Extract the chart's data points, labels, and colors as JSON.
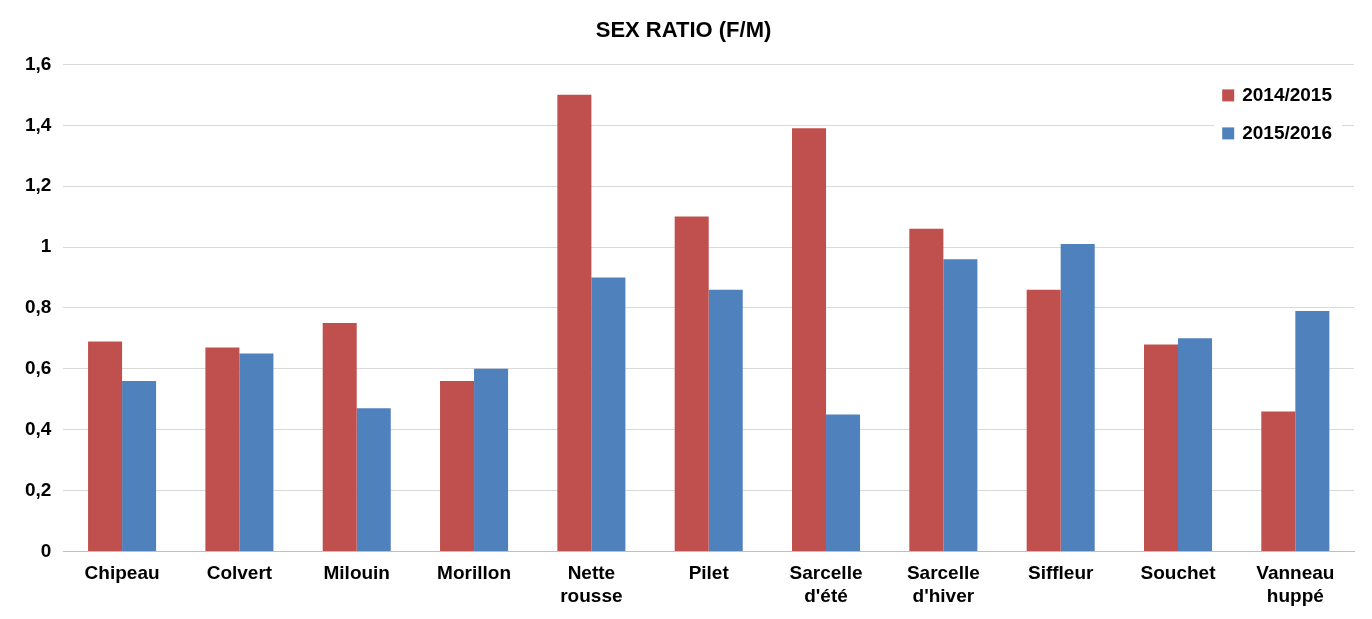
{
  "chart_data": {
    "type": "bar",
    "title": "SEX RATIO (F/M)",
    "categories": [
      "Chipeau",
      "Colvert",
      "Milouin",
      "Morillon",
      "Nette rousse",
      "Pilet",
      "Sarcelle d'été",
      "Sarcelle d'hiver",
      "Siffleur",
      "Souchet",
      "Vanneau huppé"
    ],
    "series": [
      {
        "name": "2014/2015",
        "color": "#c0504d",
        "values": [
          0.69,
          0.67,
          0.75,
          0.56,
          1.5,
          1.1,
          1.39,
          1.06,
          0.86,
          0.68,
          0.46
        ]
      },
      {
        "name": "2015/2016",
        "color": "#4f81bd",
        "values": [
          0.56,
          0.65,
          0.47,
          0.6,
          0.9,
          0.86,
          0.45,
          0.96,
          1.01,
          0.7,
          0.79
        ]
      }
    ],
    "ylim": [
      0,
      1.6
    ],
    "yticks": [
      0,
      {
        "value": 0.2,
        "label": "0,2"
      },
      {
        "value": 0.4,
        "label": "0,4"
      },
      {
        "value": 0.6,
        "label": "0,6"
      },
      {
        "value": 0.8,
        "label": "0,8"
      },
      1,
      {
        "value": 1.2,
        "label": "1,2"
      },
      {
        "value": 1.4,
        "label": "1,4"
      },
      {
        "value": 1.6,
        "label": "1,6"
      }
    ],
    "grid": "y",
    "legend": "top right"
  }
}
